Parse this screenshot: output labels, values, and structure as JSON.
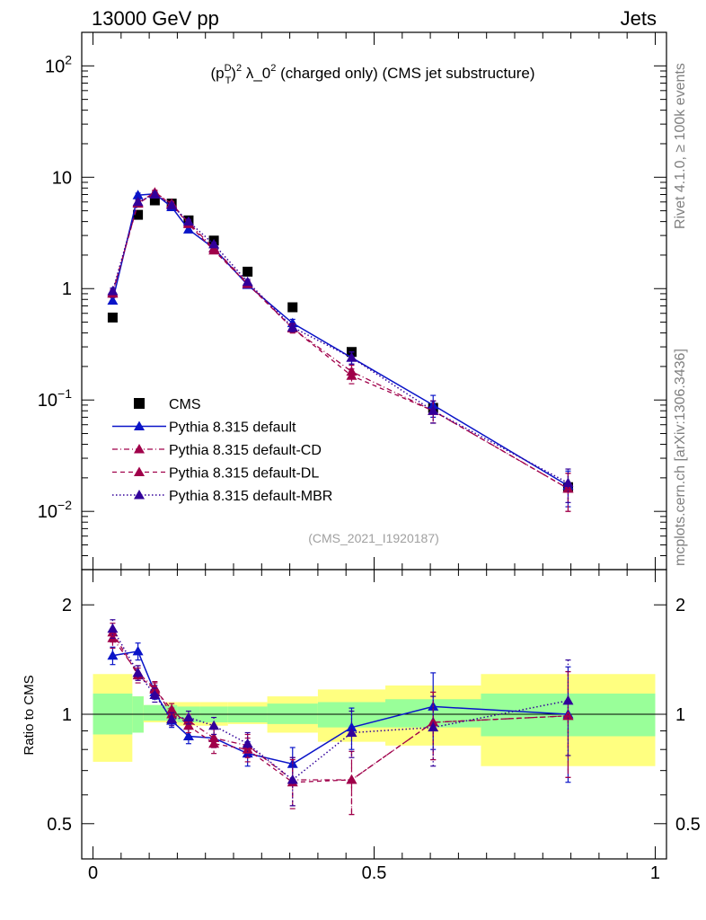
{
  "header": {
    "left": "13000 GeV pp",
    "right": "Jets"
  },
  "side_text": {
    "top": "Rivet 4.1.0, ≥ 100k events",
    "bottom": "mcplots.cern.ch [arXiv:1306.3436]"
  },
  "colors": {
    "cms": "#000000",
    "default": "#0a14c8",
    "cd": "#a0004a",
    "dl": "#a0004a",
    "mbr": "#32009a",
    "band_yellow": "#ffff80",
    "band_green": "#99ff99"
  },
  "chart_data": [
    {
      "type": "line",
      "panel": "main",
      "title": "(p_T^D)^2 λ_0^2 (charged only) (CMS jet substructure)",
      "analysis": "(CMS_2021_I1920187)",
      "yscale": "log",
      "ylim": [
        0.003,
        200
      ],
      "xlim": [
        -0.02,
        1.02
      ],
      "ytick_labels": [
        "10^-2",
        "10^-1",
        "1",
        "10",
        "10^2"
      ],
      "series": [
        {
          "name": "CMS",
          "style": "square",
          "x": [
            0.035,
            0.08,
            0.11,
            0.14,
            0.17,
            0.215,
            0.275,
            0.355,
            0.46,
            0.605,
            0.845
          ],
          "y": [
            0.55,
            4.6,
            6.2,
            5.8,
            4.1,
            2.7,
            1.42,
            0.68,
            0.27,
            0.085,
            0.0165
          ]
        },
        {
          "name": "Pythia 8.315 default",
          "style": "solid",
          "x": [
            0.035,
            0.08,
            0.11,
            0.14,
            0.17,
            0.215,
            0.275,
            0.355,
            0.46,
            0.605,
            0.845
          ],
          "y": [
            0.78,
            6.9,
            7.1,
            5.4,
            3.4,
            2.3,
            1.08,
            0.49,
            0.24,
            0.09,
            0.017
          ],
          "yerr": [
            0.05,
            0.3,
            0.3,
            0.25,
            0.15,
            0.1,
            0.06,
            0.04,
            0.03,
            0.02,
            0.006
          ]
        },
        {
          "name": "Pythia 8.315 default-CD",
          "style": "dashdot",
          "x": [
            0.035,
            0.08,
            0.11,
            0.14,
            0.17,
            0.215,
            0.275,
            0.355,
            0.46,
            0.605,
            0.845
          ],
          "y": [
            0.9,
            5.9,
            7.3,
            5.8,
            3.9,
            2.3,
            1.12,
            0.44,
            0.18,
            0.08,
            0.016
          ],
          "yerr": [
            0.06,
            0.3,
            0.35,
            0.25,
            0.18,
            0.1,
            0.06,
            0.04,
            0.025,
            0.018,
            0.006
          ]
        },
        {
          "name": "Pythia 8.315 default-DL",
          "style": "dashed",
          "x": [
            0.035,
            0.08,
            0.11,
            0.14,
            0.17,
            0.215,
            0.275,
            0.355,
            0.46,
            0.605,
            0.845
          ],
          "y": [
            0.92,
            5.8,
            7.2,
            5.7,
            3.8,
            2.2,
            1.1,
            0.44,
            0.165,
            0.08,
            0.016
          ],
          "yerr": [
            0.06,
            0.3,
            0.35,
            0.25,
            0.18,
            0.1,
            0.06,
            0.04,
            0.025,
            0.018,
            0.006
          ]
        },
        {
          "name": "Pythia 8.315 default-MBR",
          "style": "dotted",
          "x": [
            0.035,
            0.08,
            0.11,
            0.14,
            0.17,
            0.215,
            0.275,
            0.355,
            0.46,
            0.605,
            0.845
          ],
          "y": [
            0.95,
            6.0,
            7.0,
            5.6,
            4.0,
            2.5,
            1.15,
            0.45,
            0.24,
            0.08,
            0.018
          ],
          "yerr": [
            0.06,
            0.3,
            0.35,
            0.25,
            0.18,
            0.1,
            0.06,
            0.04,
            0.03,
            0.018,
            0.006
          ]
        }
      ]
    },
    {
      "type": "line",
      "panel": "ratio",
      "ylabel": "Ratio to CMS",
      "yscale": "log",
      "ylim": [
        0.4,
        2.5
      ],
      "xlim": [
        -0.02,
        1.02
      ],
      "ytick_labels": [
        "0.5",
        "1",
        "2"
      ],
      "xtick_labels": [
        "0",
        "0.5",
        "1"
      ],
      "bins": [
        0,
        0.07,
        0.09,
        0.13,
        0.15,
        0.19,
        0.24,
        0.31,
        0.4,
        0.52,
        0.69,
        1.0
      ],
      "band_green": [
        [
          0.88,
          1.14
        ],
        [
          0.89,
          1.12
        ],
        [
          0.96,
          1.06
        ],
        [
          0.96,
          1.06
        ],
        [
          0.95,
          1.05
        ],
        [
          0.95,
          1.05
        ],
        [
          0.95,
          1.05
        ],
        [
          0.94,
          1.07
        ],
        [
          0.92,
          1.08
        ],
        [
          0.92,
          1.1
        ],
        [
          0.87,
          1.14
        ]
      ],
      "band_yellow": [
        [
          0.74,
          1.29
        ],
        [
          0.89,
          1.12
        ],
        [
          0.95,
          1.06
        ],
        [
          0.94,
          1.08
        ],
        [
          0.93,
          1.08
        ],
        [
          0.93,
          1.08
        ],
        [
          0.94,
          1.08
        ],
        [
          0.89,
          1.12
        ],
        [
          0.84,
          1.17
        ],
        [
          0.82,
          1.2
        ],
        [
          0.72,
          1.29
        ]
      ],
      "series": [
        {
          "name": "Pythia 8.315 default",
          "style": "solid",
          "x": [
            0.035,
            0.08,
            0.11,
            0.14,
            0.17,
            0.215,
            0.275,
            0.355,
            0.46,
            0.605,
            0.845
          ],
          "y": [
            1.45,
            1.49,
            1.15,
            0.96,
            0.87,
            0.86,
            0.78,
            0.73,
            0.92,
            1.05,
            1.0
          ],
          "yerr": [
            0.08,
            0.08,
            0.05,
            0.04,
            0.04,
            0.05,
            0.06,
            0.08,
            0.12,
            0.25,
            0.35
          ]
        },
        {
          "name": "Pythia 8.315 default-CD",
          "style": "dashdot",
          "x": [
            0.035,
            0.08,
            0.11,
            0.14,
            0.17,
            0.215,
            0.275,
            0.355,
            0.46,
            0.605,
            0.845
          ],
          "y": [
            1.62,
            1.3,
            1.18,
            1.0,
            0.96,
            0.86,
            0.82,
            0.66,
            0.66,
            0.95,
            0.99
          ],
          "yerr": [
            0.1,
            0.06,
            0.05,
            0.04,
            0.04,
            0.05,
            0.06,
            0.1,
            0.13,
            0.2,
            0.32
          ]
        },
        {
          "name": "Pythia 8.315 default-DL",
          "style": "dashed",
          "x": [
            0.035,
            0.08,
            0.11,
            0.14,
            0.17,
            0.215,
            0.275,
            0.355,
            0.46,
            0.605,
            0.845
          ],
          "y": [
            1.68,
            1.28,
            1.17,
            1.03,
            0.93,
            0.83,
            0.8,
            0.65,
            0.66,
            0.95,
            0.99
          ],
          "yerr": [
            0.1,
            0.06,
            0.05,
            0.04,
            0.04,
            0.05,
            0.06,
            0.1,
            0.13,
            0.2,
            0.32
          ]
        },
        {
          "name": "Pythia 8.315 default-MBR",
          "style": "dotted",
          "x": [
            0.035,
            0.08,
            0.11,
            0.14,
            0.17,
            0.215,
            0.275,
            0.355,
            0.46,
            0.605,
            0.845
          ],
          "y": [
            1.72,
            1.3,
            1.13,
            0.97,
            0.98,
            0.93,
            0.83,
            0.66,
            0.89,
            0.92,
            1.09
          ],
          "yerr": [
            0.1,
            0.06,
            0.05,
            0.04,
            0.04,
            0.05,
            0.06,
            0.1,
            0.13,
            0.2,
            0.32
          ]
        }
      ]
    }
  ]
}
